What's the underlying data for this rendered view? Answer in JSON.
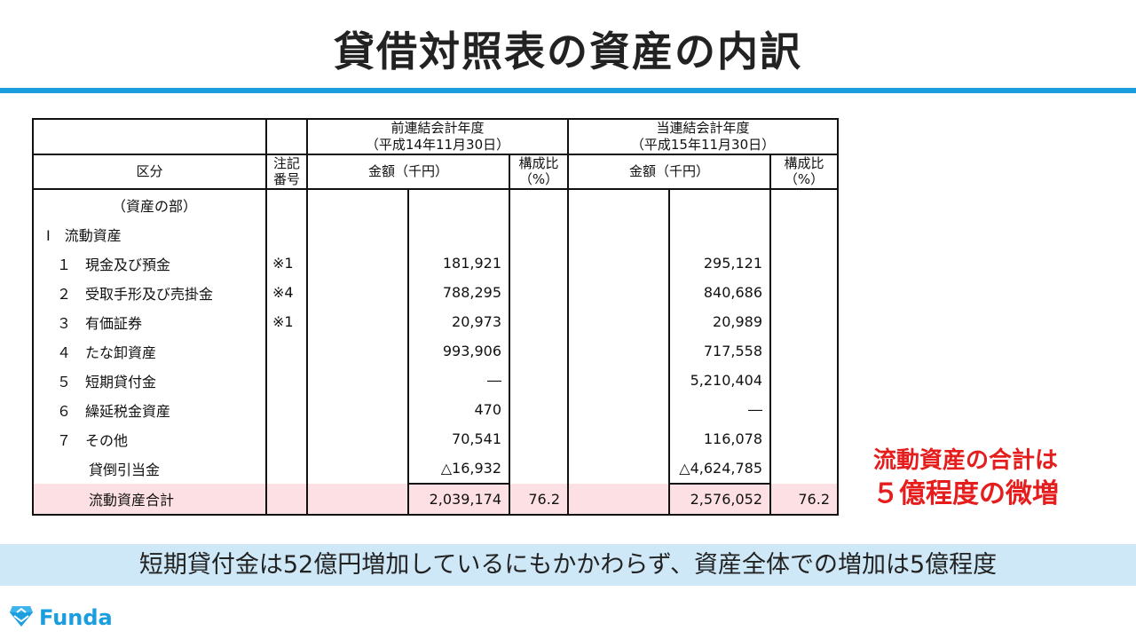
{
  "title": "貸借対照表の資産の内訳",
  "table": {
    "header": {
      "prev_period": "前連結会計年度",
      "prev_date": "（平成14年11月30日）",
      "curr_period": "当連結会計年度",
      "curr_date": "（平成15年11月30日）",
      "category": "区分",
      "note_no_1": "注記",
      "note_no_2": "番号",
      "amount": "金額（千円）",
      "ratio_1": "構成比",
      "ratio_2": "（%）"
    },
    "rows": [
      {
        "label": "（資産の部）",
        "note": "",
        "prev": "",
        "prev_ratio": "",
        "curr": "",
        "curr_ratio": ""
      },
      {
        "label": "Ⅰ　流動資産",
        "note": "",
        "prev": "",
        "prev_ratio": "",
        "curr": "",
        "curr_ratio": ""
      },
      {
        "label": "１　現金及び預金",
        "note": "※1",
        "prev": "181,921",
        "prev_ratio": "",
        "curr": "295,121",
        "curr_ratio": ""
      },
      {
        "label": "２　受取手形及び売掛金",
        "note": "※4",
        "prev": "788,295",
        "prev_ratio": "",
        "curr": "840,686",
        "curr_ratio": ""
      },
      {
        "label": "３　有価証券",
        "note": "※1",
        "prev": "20,973",
        "prev_ratio": "",
        "curr": "20,989",
        "curr_ratio": ""
      },
      {
        "label": "４　たな卸資産",
        "note": "",
        "prev": "993,906",
        "prev_ratio": "",
        "curr": "717,558",
        "curr_ratio": ""
      },
      {
        "label": "５　短期貸付金",
        "note": "",
        "prev": "―",
        "prev_ratio": "",
        "curr": "5,210,404",
        "curr_ratio": ""
      },
      {
        "label": "６　繰延税金資産",
        "note": "",
        "prev": "470",
        "prev_ratio": "",
        "curr": "―",
        "curr_ratio": ""
      },
      {
        "label": "７　その他",
        "note": "",
        "prev": "70,541",
        "prev_ratio": "",
        "curr": "116,078",
        "curr_ratio": ""
      },
      {
        "label": "貸倒引当金",
        "note": "",
        "prev": "△16,932",
        "prev_ratio": "",
        "curr": "△4,624,785",
        "curr_ratio": ""
      },
      {
        "label": "流動資産合計",
        "note": "",
        "prev": "2,039,174",
        "prev_ratio": "76.2",
        "curr": "2,576,052",
        "curr_ratio": "76.2"
      }
    ]
  },
  "callout": {
    "line1": "流動資産の合計は",
    "line2": "５億程度の微増"
  },
  "banner": "短期貸付金は52億円増加しているにもかかわらず、資産全体での増加は5億程度",
  "logo": {
    "text": "Funda",
    "icon": "diamond-logo-icon",
    "color": "#1a9ee0"
  },
  "colors": {
    "accent": "#1a9ee0",
    "highlight": "#e51d1d",
    "total_row_bg": "#fde0e4",
    "banner_bg": "#cfe8f7"
  }
}
